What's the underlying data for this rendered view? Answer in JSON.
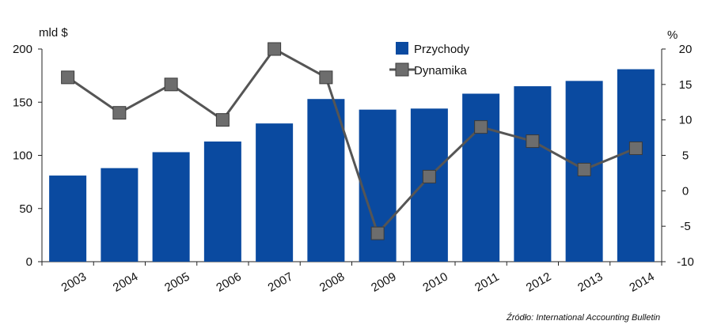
{
  "chart_data": {
    "type": "bar",
    "categories": [
      "2003",
      "2004",
      "2005",
      "2006",
      "2007",
      "2008",
      "2009",
      "2010",
      "2011",
      "2012",
      "2013",
      "2014"
    ],
    "series": [
      {
        "name": "Przychody",
        "type": "bar",
        "axis": "left",
        "color": "#0a4aa0",
        "values": [
          81,
          88,
          103,
          113,
          130,
          153,
          143,
          144,
          158,
          165,
          170,
          181
        ]
      },
      {
        "name": "Dynamika",
        "type": "line",
        "axis": "right",
        "color": "#555555",
        "values": [
          16,
          11,
          15,
          10,
          20,
          16,
          -6,
          2,
          9,
          7,
          3,
          6
        ]
      }
    ],
    "y_left": {
      "unit": "mld $",
      "ticks": [
        0,
        50,
        100,
        150,
        200
      ],
      "lim": [
        0,
        200
      ]
    },
    "y_right": {
      "unit": "%",
      "ticks": [
        -10,
        -5,
        0,
        5,
        10,
        15,
        20
      ],
      "lim": [
        -10,
        20
      ]
    },
    "legend_position": "top-right",
    "grid": false
  },
  "source": {
    "label": "Źródło:",
    "text": "International Accounting Bulletin"
  }
}
